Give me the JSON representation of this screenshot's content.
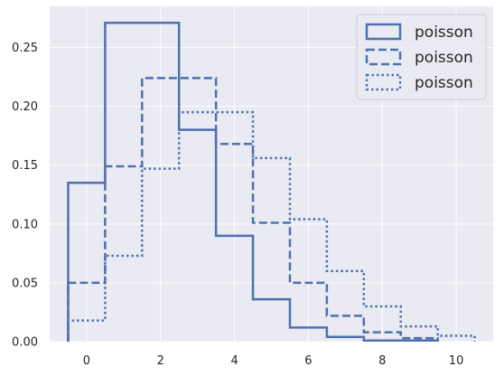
{
  "chart_data": {
    "type": "step-histogram",
    "title": "",
    "xlabel": "",
    "ylabel": "",
    "xlim": [
      -1,
      11
    ],
    "ylim": [
      0,
      0.285
    ],
    "grid": true,
    "legend_position": "top-right",
    "x_ticks": [
      0,
      2,
      4,
      6,
      8,
      10
    ],
    "y_ticks": [
      0.0,
      0.05,
      0.1,
      0.15,
      0.2,
      0.25
    ],
    "x_tick_labels": [
      "0",
      "2",
      "4",
      "6",
      "8",
      "10"
    ],
    "y_tick_labels": [
      "0.00",
      "0.05",
      "0.10",
      "0.15",
      "0.20",
      "0.25"
    ],
    "series": [
      {
        "name": "poisson",
        "linestyle": "solid",
        "color": "#4c72b0",
        "bin_edges": [
          -0.5,
          0.5,
          2.5,
          3.5,
          4.5,
          5.5,
          6.5,
          7.5,
          9.5
        ],
        "values": [
          0.135,
          0.271,
          0.18,
          0.09,
          0.036,
          0.012,
          0.004,
          0.001
        ]
      },
      {
        "name": "poisson",
        "linestyle": "dashed",
        "color": "#4c72b0",
        "bin_edges": [
          -0.5,
          0.5,
          1.5,
          3.5,
          4.5,
          5.5,
          6.5,
          7.5,
          8.5,
          9.5
        ],
        "values": [
          0.05,
          0.149,
          0.224,
          0.168,
          0.101,
          0.05,
          0.022,
          0.008,
          0.003
        ]
      },
      {
        "name": "poisson",
        "linestyle": "dotted",
        "color": "#4c72b0",
        "bin_edges": [
          -0.5,
          0.5,
          1.5,
          2.5,
          4.5,
          5.5,
          6.5,
          7.5,
          8.5,
          9.5,
          10.5
        ],
        "values": [
          0.018,
          0.073,
          0.147,
          0.195,
          0.156,
          0.104,
          0.06,
          0.03,
          0.013,
          0.005
        ]
      }
    ]
  },
  "colors": {
    "plot_background": "#eaeaf2",
    "grid": "#ffffff",
    "series": "#4c72b0"
  }
}
